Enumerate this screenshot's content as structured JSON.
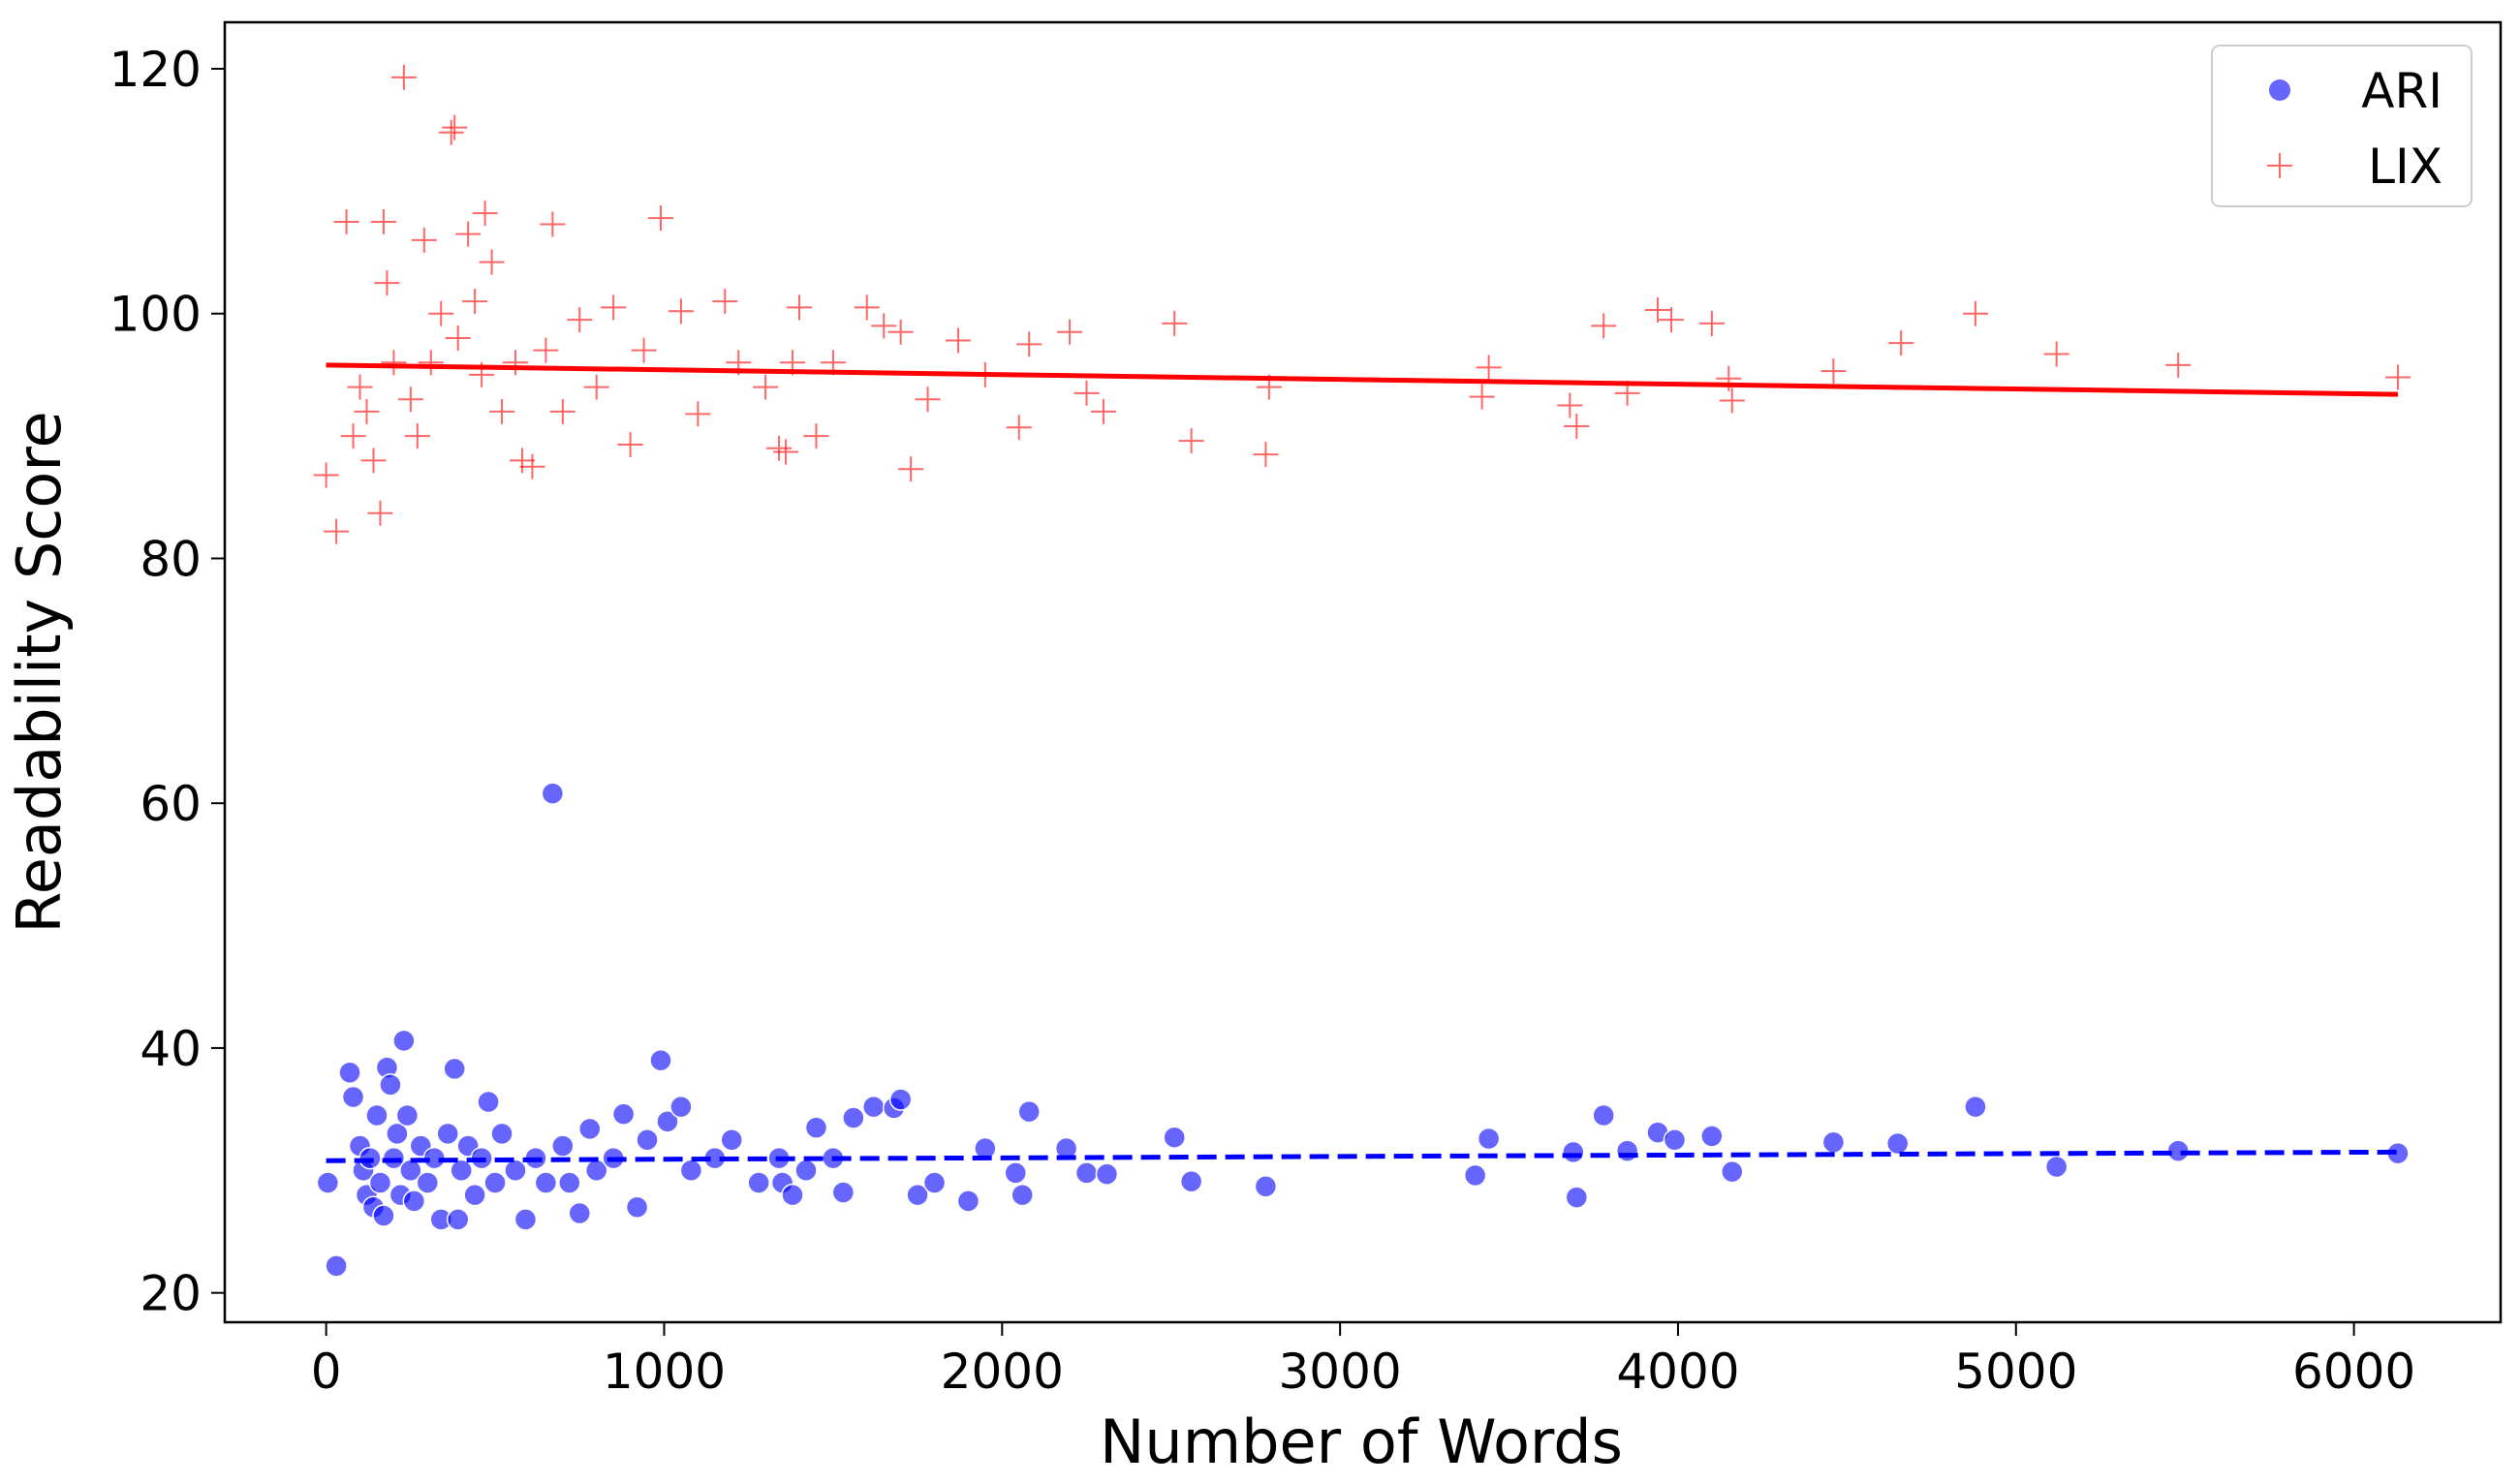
{
  "chart_data": {
    "type": "scatter",
    "xlabel": "Number of Words",
    "ylabel": "Readability Score",
    "xlim": [
      -300,
      6434
    ],
    "ylim": [
      17.6,
      123.8
    ],
    "xticks": [
      0,
      1000,
      2000,
      3000,
      4000,
      5000,
      6000
    ],
    "yticks": [
      20,
      40,
      60,
      80,
      100,
      120
    ],
    "legend": "upper right",
    "series": [
      {
        "name": "ARI",
        "color": "#0000ff",
        "marker": "circle",
        "x": [
          5,
          30,
          70,
          80,
          100,
          110,
          120,
          130,
          140,
          150,
          160,
          170,
          180,
          190,
          200,
          210,
          220,
          230,
          240,
          250,
          260,
          280,
          300,
          320,
          340,
          360,
          380,
          390,
          400,
          420,
          440,
          460,
          480,
          500,
          520,
          560,
          590,
          620,
          650,
          670,
          700,
          720,
          750,
          780,
          800,
          850,
          880,
          920,
          950,
          990,
          1010,
          1050,
          1080,
          1150,
          1200,
          1280,
          1340,
          1350,
          1380,
          1420,
          1450,
          1500,
          1530,
          1560,
          1620,
          1680,
          1700,
          1750,
          1800,
          1900,
          1950,
          2040,
          2060,
          2080,
          2190,
          2250,
          2310,
          2510,
          2560,
          2780,
          3400,
          3440,
          3690,
          3700,
          3780,
          3850,
          3940,
          3990,
          4100,
          4160,
          4460,
          4650,
          4880,
          5120,
          5480,
          6130
        ],
        "values": [
          29,
          22.2,
          38,
          36,
          32,
          30,
          28,
          31,
          27,
          34.5,
          29,
          26.3,
          38.4,
          37,
          31,
          33,
          28,
          40.6,
          34.5,
          30,
          27.5,
          32,
          29,
          31,
          26,
          33,
          38.3,
          26,
          30,
          32,
          28,
          31,
          35.6,
          29,
          33,
          30,
          26,
          31,
          29,
          60.8,
          32,
          29,
          26.5,
          33.4,
          30,
          31,
          34.6,
          27,
          32.5,
          39,
          34,
          35.2,
          30,
          31,
          32.5,
          29,
          31,
          29,
          28,
          30,
          33.5,
          31,
          28.2,
          34.3,
          35.2,
          35.1,
          35.8,
          28,
          29,
          27.5,
          31.8,
          29.8,
          28,
          34.8,
          31.8,
          29.8,
          29.7,
          32.7,
          29.1,
          28.7,
          29.6,
          32.6,
          31.5,
          27.8,
          34.5,
          31.6,
          33.1,
          32.5,
          32.8,
          29.9,
          32.3,
          32.2,
          35.2,
          30.3,
          31.6,
          31.4
        ],
        "trend": {
          "x": [
            0,
            6130
          ],
          "values": [
            30.8,
            31.5
          ],
          "style": "dashed"
        }
      },
      {
        "name": "LIX",
        "color": "#ff0000",
        "marker": "plus",
        "x": [
          0,
          30,
          60,
          80,
          100,
          120,
          140,
          160,
          170,
          180,
          200,
          230,
          250,
          270,
          290,
          310,
          340,
          370,
          380,
          390,
          420,
          440,
          460,
          470,
          490,
          520,
          560,
          580,
          610,
          650,
          670,
          700,
          750,
          800,
          850,
          900,
          940,
          990,
          1050,
          1100,
          1180,
          1220,
          1300,
          1340,
          1360,
          1380,
          1400,
          1450,
          1500,
          1600,
          1650,
          1700,
          1730,
          1780,
          1870,
          1950,
          2050,
          2080,
          2200,
          2250,
          2300,
          2510,
          2560,
          2780,
          2790,
          3420,
          3440,
          3680,
          3700,
          3780,
          3850,
          3940,
          3980,
          4100,
          4150,
          4160,
          4460,
          4660,
          4880,
          5120,
          5480,
          6130
        ],
        "values": [
          86.8,
          82.2,
          107.5,
          90,
          94,
          92,
          88,
          83.7,
          107.5,
          102.5,
          96,
          119.3,
          93,
          90,
          106,
          96,
          100,
          114.8,
          115.2,
          98,
          106.5,
          101,
          95,
          108.2,
          104.2,
          92,
          96,
          88,
          87.5,
          97,
          107.3,
          92,
          99.5,
          94,
          100.5,
          89.3,
          97,
          107.8,
          100.2,
          91.8,
          101,
          96,
          94,
          89,
          88.7,
          96,
          100.5,
          90,
          96,
          100.5,
          99,
          98.5,
          87.3,
          93,
          97.8,
          95,
          90.7,
          97.5,
          98.5,
          93.5,
          92,
          99.2,
          89.6,
          88.5,
          94,
          93.2,
          95.6,
          92.5,
          90.8,
          99,
          93.5,
          100.3,
          99.5,
          99.2,
          94.7,
          92.9,
          95.3,
          97.6,
          100,
          96.7,
          95.8,
          94.8
        ],
        "trend": {
          "x": [
            0,
            6130
          ],
          "values": [
            95.8,
            93.4
          ],
          "style": "solid"
        }
      }
    ]
  }
}
